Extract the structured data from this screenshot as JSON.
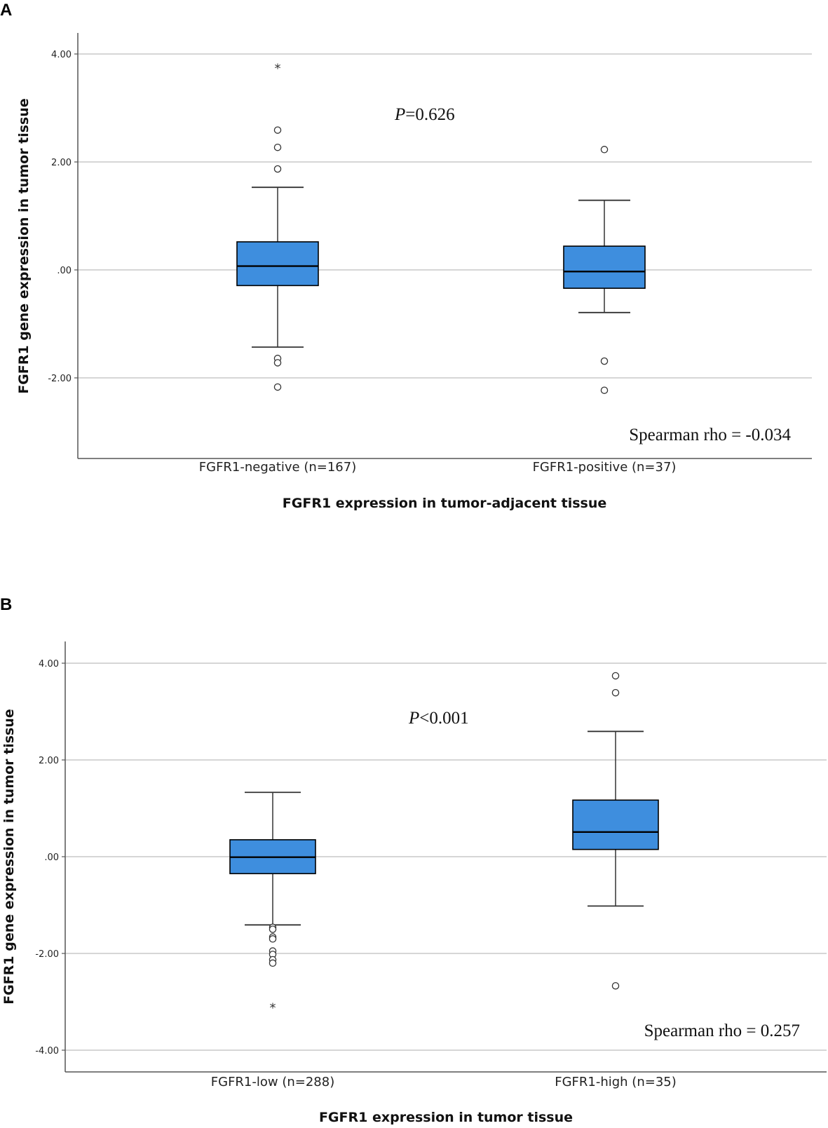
{
  "colors": {
    "box_fill": "#3e8ede",
    "box_stroke": "#000000",
    "grid": "#c8c8c8",
    "axis": "#555555"
  },
  "chart_data": [
    {
      "panel": "A",
      "type": "box",
      "xlabel": "FGFR1 expression in tumor-adjacent tissue",
      "ylabel": "FGFR1 gene expression in tumor tissue",
      "ylim": [
        -3.4,
        4.4
      ],
      "yticks": [
        4.0,
        2.0,
        0.0,
        -2.0
      ],
      "ytick_labels": [
        "4.00",
        "2.00",
        ".00",
        "-2.00"
      ],
      "grid": true,
      "annotation_p": {
        "italic": "P",
        "text": "=0.626"
      },
      "annotation_rho": "Spearman rho = -0.034",
      "groups": [
        {
          "label": "FGFR1-negative (n=167)",
          "whisker_low": -1.43,
          "q1": -0.29,
          "median": 0.07,
          "q3": 0.52,
          "whisker_high": 1.53,
          "outliers": [
            2.59,
            2.27,
            1.87,
            -1.64,
            -1.72,
            -2.17
          ],
          "extremes": [
            3.75
          ]
        },
        {
          "label": "FGFR1-positive (n=37)",
          "whisker_low": -0.79,
          "q1": -0.34,
          "median": -0.03,
          "q3": 0.44,
          "whisker_high": 1.29,
          "outliers": [
            2.23,
            -1.69,
            -2.23
          ],
          "extremes": []
        }
      ]
    },
    {
      "panel": "B",
      "type": "box",
      "xlabel": "FGFR1 expression in tumor tissue",
      "ylabel": "FGFR1 gene expression in tumor tissue",
      "ylim": [
        -4.45,
        4.45
      ],
      "yticks": [
        4.0,
        2.0,
        0.0,
        -2.0,
        -4.0
      ],
      "ytick_labels": [
        "4.00",
        "2.00",
        ".00",
        "-2.00",
        "-4.00"
      ],
      "grid": true,
      "annotation_p": {
        "italic": "P",
        "text": "<0.001"
      },
      "annotation_rho": "Spearman rho = 0.257",
      "groups": [
        {
          "label": "FGFR1-low (n=288)",
          "whisker_low": -1.41,
          "q1": -0.35,
          "median": -0.01,
          "q3": 0.35,
          "whisker_high": 1.33,
          "outliers": [
            -1.46,
            -1.5,
            -1.66,
            -1.7,
            -1.95,
            -2.02,
            -2.13,
            -2.2
          ],
          "extremes": [
            -3.11
          ]
        },
        {
          "label": "FGFR1-high (n=35)",
          "whisker_low": -1.02,
          "q1": 0.15,
          "median": 0.51,
          "q3": 1.17,
          "whisker_high": 2.59,
          "outliers": [
            3.74,
            3.39,
            -2.67
          ],
          "extremes": []
        }
      ]
    }
  ]
}
